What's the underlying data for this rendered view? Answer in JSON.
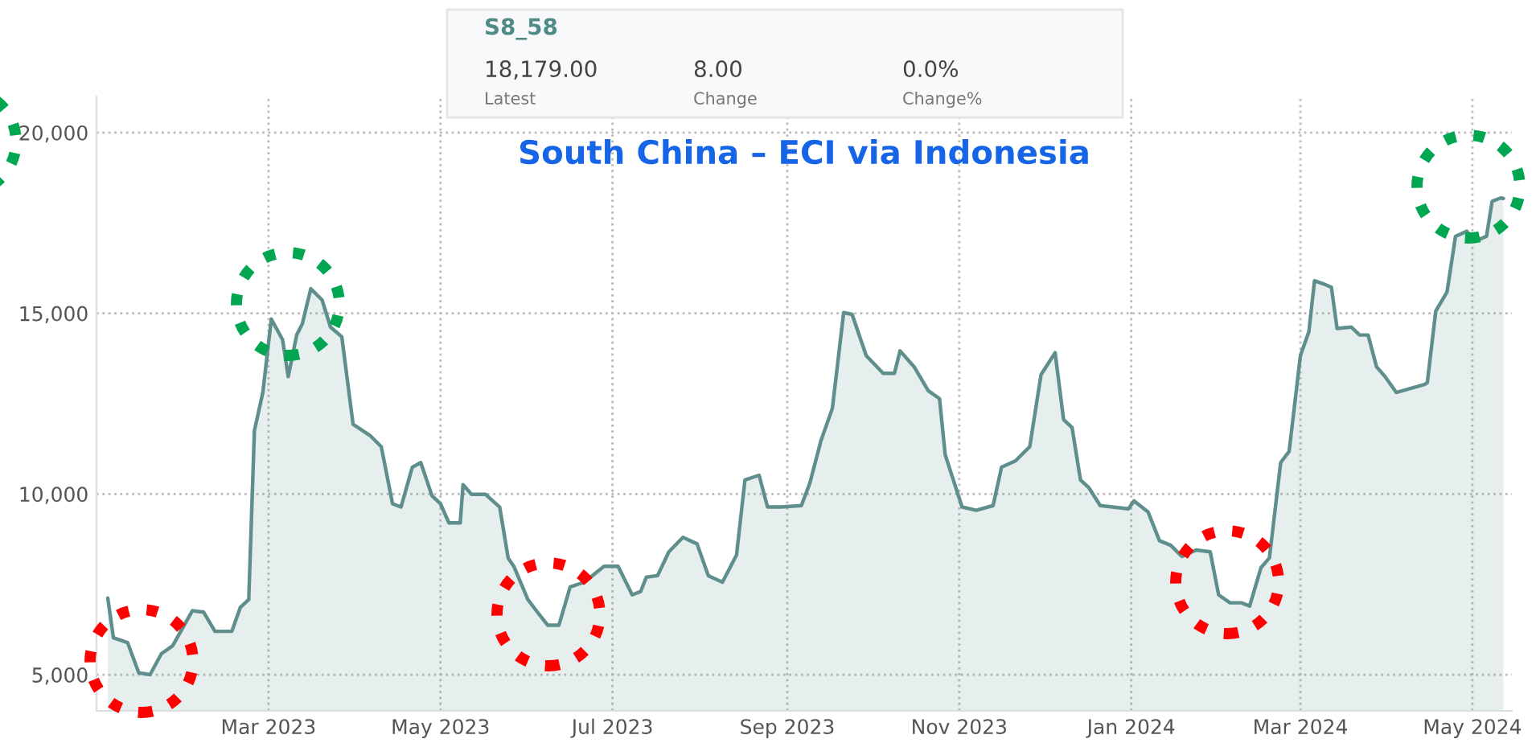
{
  "chart_data": {
    "type": "area",
    "title": "South China – ECI via Indonesia",
    "annotations": [
      "S8_58",
      "18,179.00",
      "Latest",
      "8.00",
      "Change",
      "0.0%",
      "Change%"
    ],
    "x": [
      "2023-01-03",
      "2023-01-05",
      "2023-01-10",
      "2023-01-14",
      "2023-01-18",
      "2023-01-22",
      "2023-01-26",
      "2023-02-02",
      "2023-02-06",
      "2023-02-10",
      "2023-02-16",
      "2023-02-19",
      "2023-02-22",
      "2023-02-24",
      "2023-02-27",
      "2023-03-02",
      "2023-03-06",
      "2023-03-08",
      "2023-03-11",
      "2023-03-13",
      "2023-03-16",
      "2023-03-20",
      "2023-03-23",
      "2023-03-27",
      "2023-03-31",
      "2023-04-06",
      "2023-04-10",
      "2023-04-14",
      "2023-04-17",
      "2023-04-21",
      "2023-04-24",
      "2023-04-28",
      "2023-05-01",
      "2023-05-04",
      "2023-05-08",
      "2023-05-09",
      "2023-05-12",
      "2023-05-17",
      "2023-05-22",
      "2023-05-25",
      "2023-05-27",
      "2023-06-01",
      "2023-06-04",
      "2023-06-08",
      "2023-06-12",
      "2023-06-16",
      "2023-06-21",
      "2023-06-28",
      "2023-07-03",
      "2023-07-08",
      "2023-07-11",
      "2023-07-13",
      "2023-07-17",
      "2023-07-21",
      "2023-07-26",
      "2023-07-31",
      "2023-08-04",
      "2023-08-09",
      "2023-08-14",
      "2023-08-17",
      "2023-08-22",
      "2023-08-25",
      "2023-08-30",
      "2023-09-06",
      "2023-09-09",
      "2023-09-13",
      "2023-09-17",
      "2023-09-21",
      "2023-09-24",
      "2023-09-29",
      "2023-10-05",
      "2023-10-09",
      "2023-10-11",
      "2023-10-16",
      "2023-10-21",
      "2023-10-25",
      "2023-10-27",
      "2023-11-02",
      "2023-11-07",
      "2023-11-13",
      "2023-11-16",
      "2023-11-21",
      "2023-11-26",
      "2023-11-30",
      "2023-12-05",
      "2023-12-08",
      "2023-12-11",
      "2023-12-14",
      "2023-12-17",
      "2023-12-21",
      "2023-12-31",
      "2024-01-02",
      "2024-01-07",
      "2024-01-11",
      "2024-01-15",
      "2024-01-19",
      "2024-01-24",
      "2024-01-29",
      "2024-02-01",
      "2024-02-05",
      "2024-02-09",
      "2024-02-12",
      "2024-02-16",
      "2024-02-19",
      "2024-02-23",
      "2024-02-26",
      "2024-03-01",
      "2024-03-04",
      "2024-03-06",
      "2024-03-09",
      "2024-03-12",
      "2024-03-14",
      "2024-03-19",
      "2024-03-22",
      "2024-03-25",
      "2024-03-28",
      "2024-03-31",
      "2024-04-04",
      "2024-04-14",
      "2024-04-15",
      "2024-04-18",
      "2024-04-22",
      "2024-04-25",
      "2024-04-29",
      "2024-05-02",
      "2024-05-06",
      "2024-05-08",
      "2024-05-11",
      "2024-05-12"
    ],
    "series": [
      {
        "color": "#5f8f8c",
        "values": [
          7120,
          6020,
          5890,
          5050,
          5000,
          5580,
          5800,
          6770,
          6730,
          6200,
          6200,
          6860,
          7080,
          11750,
          12810,
          14840,
          14270,
          13250,
          14400,
          14710,
          15680,
          15370,
          14620,
          14350,
          11930,
          11620,
          11310,
          9730,
          9640,
          10740,
          10870,
          9950,
          9730,
          9200,
          9200,
          10260,
          9990,
          9990,
          9640,
          8230,
          8000,
          7080,
          6770,
          6370,
          6370,
          7430,
          7560,
          8000,
          8000,
          7210,
          7300,
          7700,
          7740,
          8400,
          8800,
          8620,
          7740,
          7560,
          8310,
          10390,
          10520,
          9640,
          9640,
          9680,
          10300,
          11490,
          12370,
          15020,
          14970,
          13830,
          13340,
          13340,
          13960,
          13520,
          12860,
          12640,
          11090,
          9640,
          9550,
          9680,
          10740,
          10920,
          11310,
          13300,
          13910,
          12060,
          11840,
          10390,
          10170,
          9680,
          9590,
          9810,
          9500,
          8710,
          8580,
          8270,
          8450,
          8400,
          7210,
          6990,
          6990,
          6900,
          7960,
          8230,
          10870,
          11180,
          13830,
          14490,
          15900,
          15820,
          15720,
          14580,
          14620,
          14400,
          14400,
          13520,
          13250,
          12810,
          13030,
          13080,
          15060,
          15590,
          17130,
          17270,
          17000,
          17130,
          18100,
          18190,
          18180
        ]
      }
    ],
    "xlim": [
      "2022-12-30",
      "2024-05-15"
    ],
    "xticks": [
      {
        "value": "2023-03-01",
        "label": "Mar 2023"
      },
      {
        "value": "2023-05-01",
        "label": "May 2023"
      },
      {
        "value": "2023-07-01",
        "label": "Jul 2023"
      },
      {
        "value": "2023-09-01",
        "label": "Sep 2023"
      },
      {
        "value": "2023-11-01",
        "label": "Nov 2023"
      },
      {
        "value": "2024-01-01",
        "label": "Jan 2024"
      },
      {
        "value": "2024-03-01",
        "label": "Mar 2024"
      },
      {
        "value": "2024-05-01",
        "label": "May 2024"
      }
    ],
    "ylim": [
      4000,
      21000
    ],
    "yticks": [
      {
        "value": 5000,
        "label": "5,000"
      },
      {
        "value": 10000,
        "label": "10,000"
      },
      {
        "value": 15000,
        "label": "15,000"
      },
      {
        "value": 20000,
        "label": "20,000"
      }
    ],
    "grid": true,
    "line_style": "solid",
    "marker": "none"
  }
}
